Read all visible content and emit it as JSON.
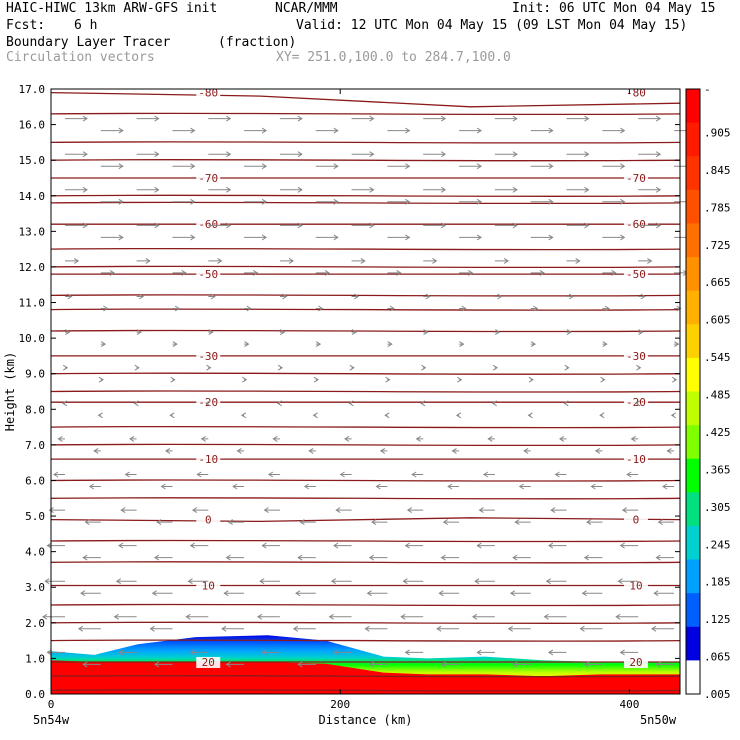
{
  "header": {
    "title_left": "HAIC-HIWC 13km ARW-GFS init",
    "title_center": "NCAR/MMM",
    "init": "Init: 06 UTC Mon 04 May 15",
    "fcst_label": "Fcst:",
    "fcst_value": "6 h",
    "valid": "Valid: 12 UTC Mon 04 May 15 (09 LST Mon 04 May 15)",
    "field_name": "Boundary Layer Tracer",
    "field_units": "(fraction)",
    "vectors_label": "Circulation vectors",
    "xy_label": "XY= 251.0,100.0 to 284.7,100.0"
  },
  "chart_data": {
    "type": "heatmap",
    "title": "Boundary Layer Tracer (fraction)",
    "xlabel": "Distance (km)",
    "ylabel": "Height (km)",
    "xlim": [
      0,
      435
    ],
    "ylim": [
      0,
      17
    ],
    "x_ticks": [
      "0",
      "200",
      "400"
    ],
    "x_tick_values": [
      0,
      200,
      400
    ],
    "x_endpoints": [
      "5n54w",
      "5n50w"
    ],
    "y_ticks": [
      "0.0",
      "1.0",
      "2.0",
      "3.0",
      "4.0",
      "5.0",
      "6.0",
      "7.0",
      "8.0",
      "9.0",
      "10.0",
      "11.0",
      "12.0",
      "13.0",
      "14.0",
      "15.0",
      "16.0",
      "17.0"
    ],
    "colorbar": {
      "labels": [
        "-",
        ".905",
        ".845",
        ".785",
        ".725",
        ".665",
        ".605",
        ".545",
        ".485",
        ".425",
        ".365",
        ".305",
        ".245",
        ".185",
        ".125",
        ".065",
        ".005"
      ],
      "colors": [
        "#ff0000",
        "#ff1a00",
        "#ff3300",
        "#ff5000",
        "#ff7000",
        "#ff9000",
        "#ffb000",
        "#ffd000",
        "#ffff00",
        "#c0ff00",
        "#80ff00",
        "#00ff00",
        "#00e080",
        "#00d0d0",
        "#00a0ff",
        "#0060ff",
        "#0000e0",
        "#ffffff"
      ]
    },
    "tracer_top": {
      "x": [
        0,
        30,
        60,
        100,
        150,
        190,
        230,
        260,
        300,
        340,
        380,
        435
      ],
      "top_km": [
        1.2,
        1.1,
        1.4,
        1.6,
        1.65,
        1.5,
        1.05,
        1.0,
        1.05,
        0.95,
        0.9,
        0.9
      ],
      "red_top_km": [
        0.95,
        0.9,
        0.9,
        0.9,
        0.9,
        0.85,
        0.6,
        0.55,
        0.55,
        0.5,
        0.55,
        0.55
      ]
    },
    "contours": {
      "series": [
        {
          "label": "-80",
          "heights_km": [
            16.9,
            16.8,
            16.5,
            16.6
          ]
        },
        {
          "label": "-70",
          "heights_km": [
            14.5,
            14.5,
            14.5,
            14.5
          ]
        },
        {
          "label": "-60",
          "heights_km": [
            13.2,
            13.2,
            13.2,
            13.2
          ]
        },
        {
          "label": "-50",
          "heights_km": [
            11.8,
            11.8,
            11.8,
            11.8
          ]
        },
        {
          "label": "-30",
          "heights_km": [
            9.5,
            9.5,
            9.5,
            9.5
          ]
        },
        {
          "label": "-20",
          "heights_km": [
            8.2,
            8.2,
            8.2,
            8.2
          ]
        },
        {
          "label": "-10",
          "heights_km": [
            6.6,
            6.6,
            6.6,
            6.6
          ]
        },
        {
          "label": "0",
          "heights_km": [
            4.9,
            4.85,
            4.95,
            4.9
          ]
        },
        {
          "label": "10",
          "heights_km": [
            3.05,
            3.05,
            3.05,
            3.05
          ]
        },
        {
          "label": "20",
          "heights_km": [
            0.9,
            0.9,
            0.9,
            0.9
          ]
        }
      ],
      "other_levels_km": [
        16.3,
        15.5,
        15.0,
        14.0,
        13.8,
        12.5,
        12.0,
        11.2,
        10.8,
        10.2,
        9.0,
        8.5,
        7.5,
        7.0,
        6.0,
        5.5,
        4.3,
        3.7,
        2.5,
        2.0,
        1.5,
        0.5,
        0.1
      ]
    },
    "vectors": {
      "description_levels_km": [
        16,
        15,
        14,
        13,
        12,
        11,
        10,
        9,
        8,
        7,
        6,
        5,
        4,
        3,
        2,
        1
      ],
      "u_direction": [
        1,
        1,
        1,
        1,
        0.6,
        0.3,
        0.2,
        0.1,
        -0.1,
        -0.3,
        -0.5,
        -0.7,
        -0.8,
        -0.9,
        -1,
        -0.8
      ]
    }
  }
}
